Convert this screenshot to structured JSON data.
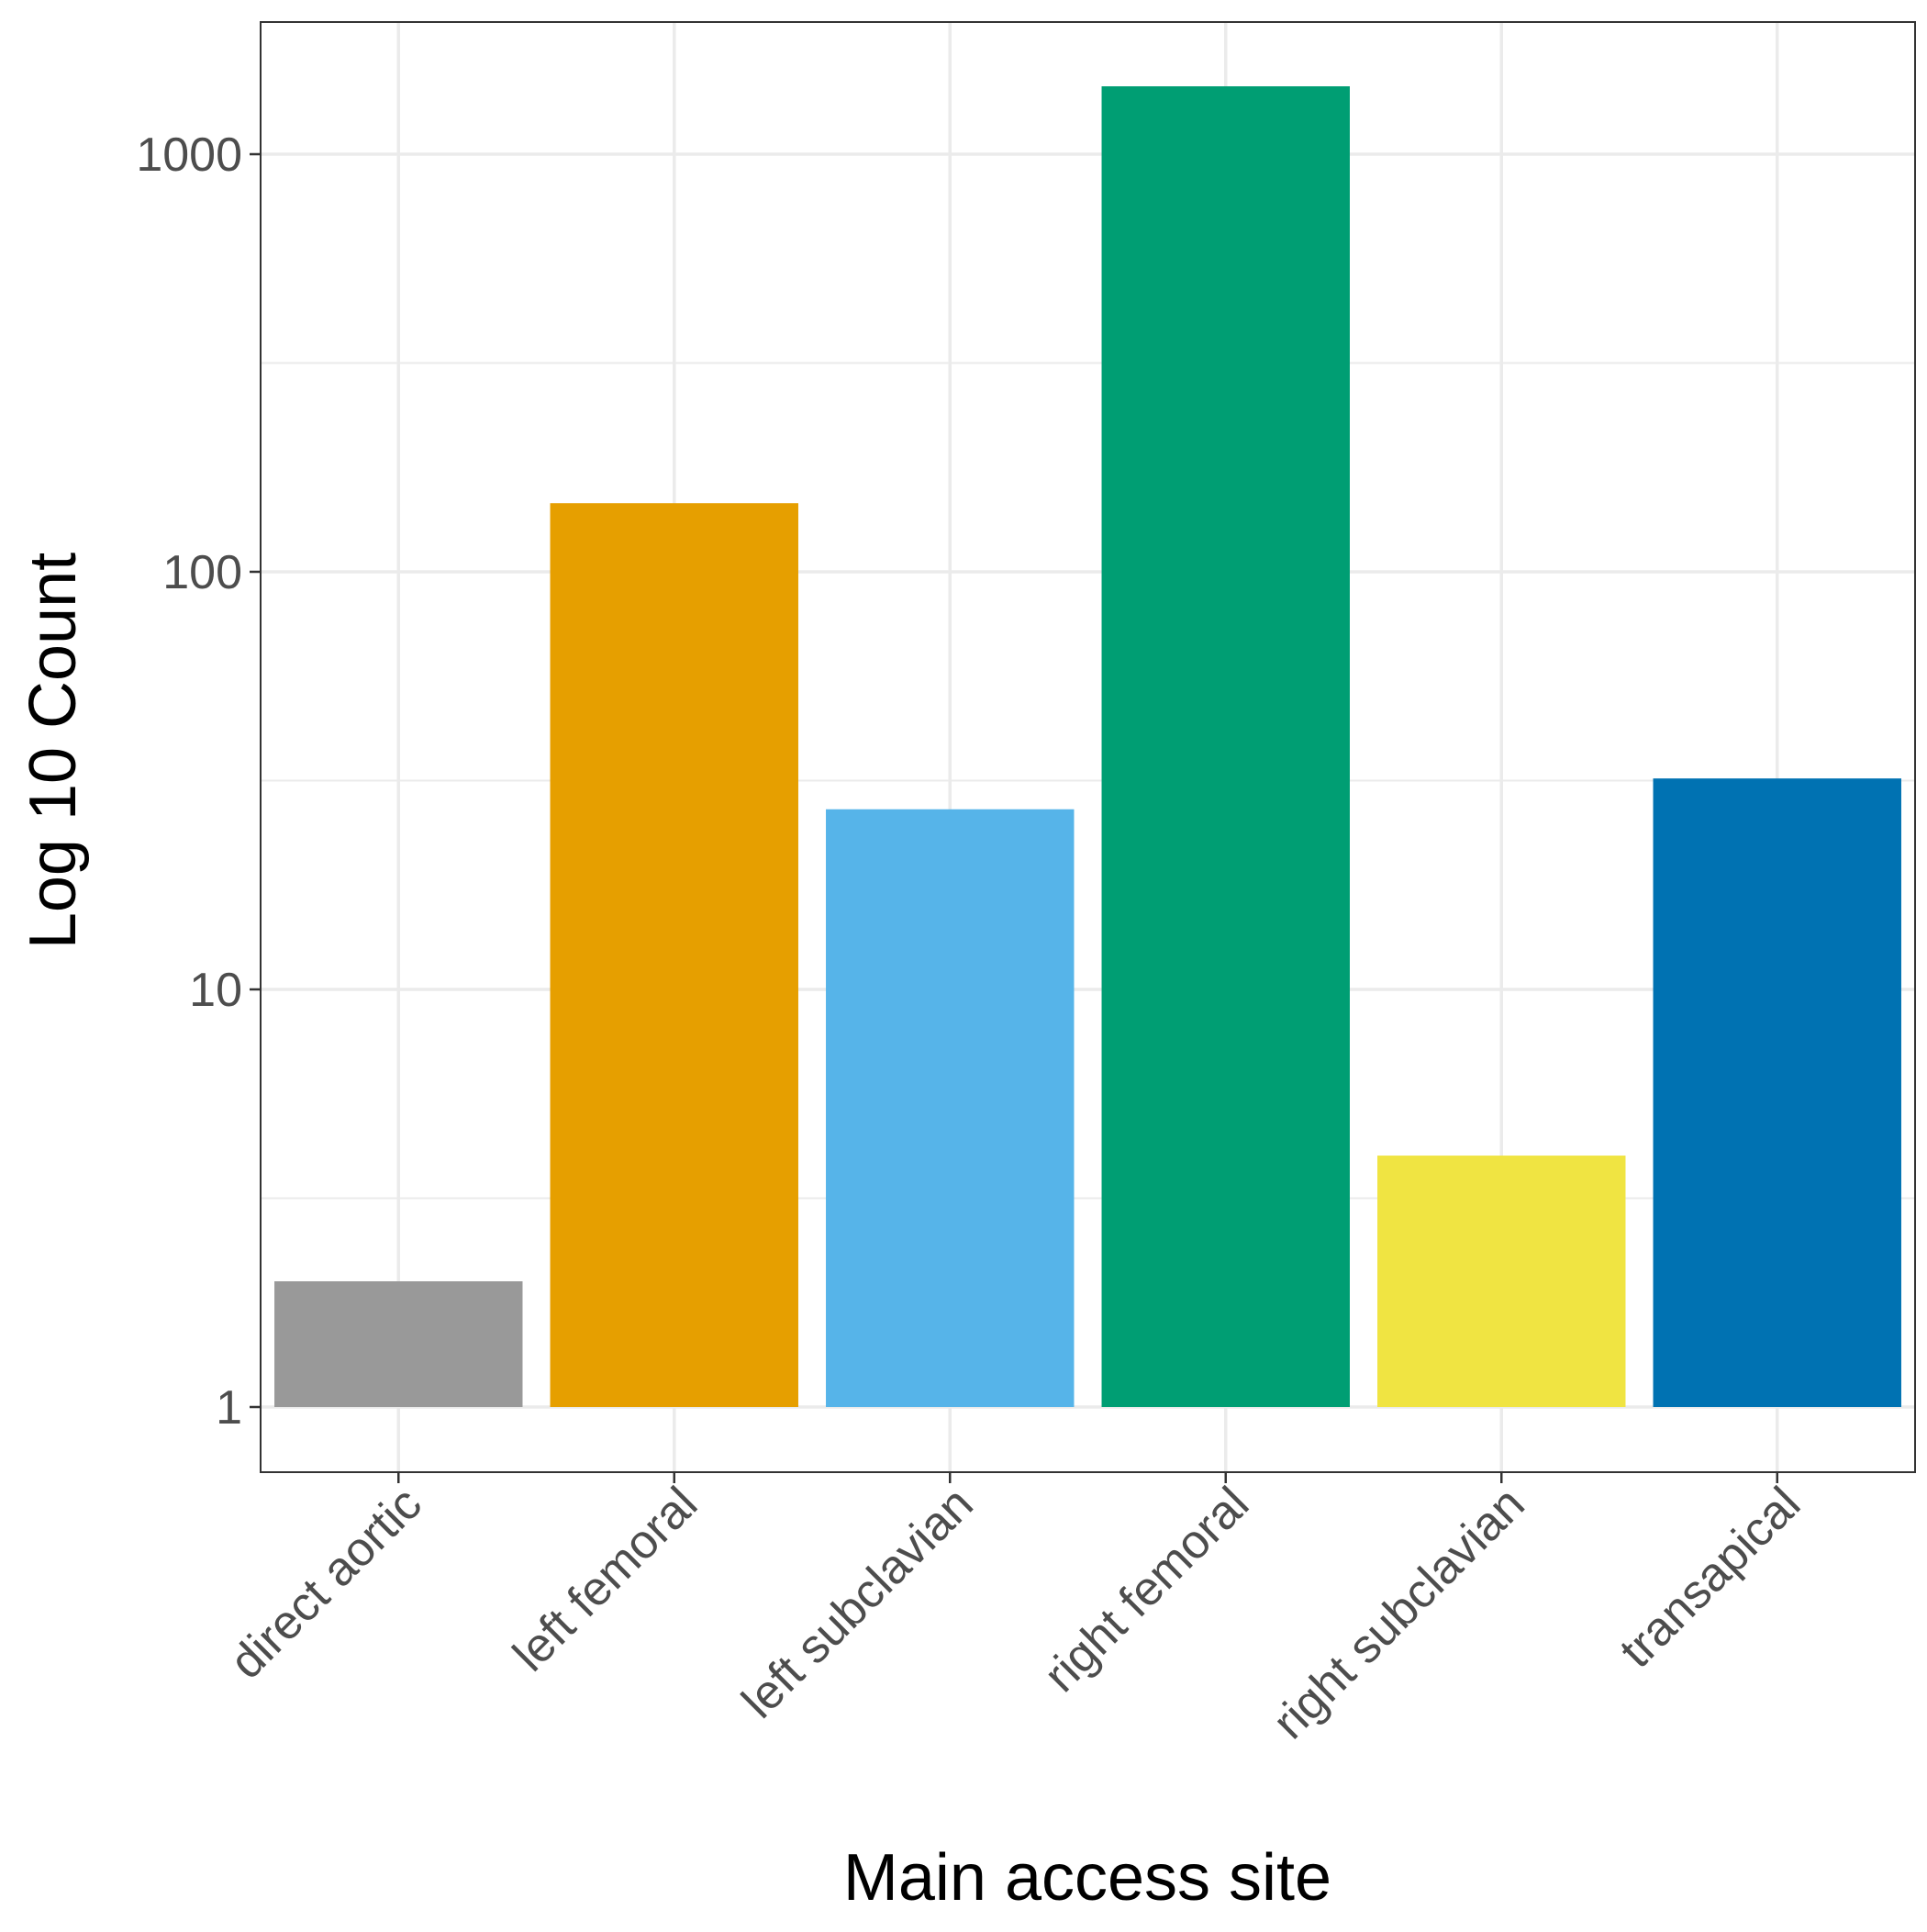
{
  "chart_data": {
    "type": "bar",
    "xlabel": "Main access site",
    "ylabel": "Log 10 Count",
    "y_scale": "log10",
    "ylim": [
      0.7,
      2000
    ],
    "y_ticks": [
      1,
      10,
      100,
      1000
    ],
    "y_minor_ticks": [
      3.162,
      31.62,
      316.2
    ],
    "grid": true,
    "legend": "none",
    "categories": [
      "direct aortic",
      "left femoral",
      "left subclavian",
      "right femoral",
      "right subclavian",
      "transapical"
    ],
    "values": [
      2,
      146,
      27,
      1454,
      4,
      32
    ],
    "colors": [
      "#999999",
      "#E69F00",
      "#56B4E9",
      "#009E73",
      "#F0E442",
      "#0072B2"
    ]
  }
}
